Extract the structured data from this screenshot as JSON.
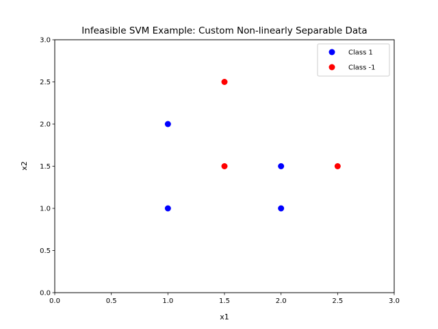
{
  "chart_data": {
    "type": "scatter",
    "title": "Infeasible SVM Example: Custom Non-linearly Separable Data",
    "xlabel": "x1",
    "ylabel": "x2",
    "xlim": [
      0,
      3
    ],
    "ylim": [
      0,
      3
    ],
    "xticks": [
      0.0,
      0.5,
      1.0,
      1.5,
      2.0,
      2.5,
      3.0
    ],
    "yticks": [
      0.0,
      0.5,
      1.0,
      1.5,
      2.0,
      2.5,
      3.0
    ],
    "xtick_labels": [
      "0.0",
      "0.5",
      "1.0",
      "1.5",
      "2.0",
      "2.5",
      "3.0"
    ],
    "ytick_labels": [
      "0.0",
      "0.5",
      "1.0",
      "1.5",
      "2.0",
      "2.5",
      "3.0"
    ],
    "grid": false,
    "legend_position": "top-right",
    "series": [
      {
        "name": "Class 1",
        "color": "#0000ff",
        "points": [
          {
            "x": 1.0,
            "y": 1.0
          },
          {
            "x": 2.0,
            "y": 1.0
          },
          {
            "x": 2.0,
            "y": 1.5
          },
          {
            "x": 1.0,
            "y": 2.0
          }
        ]
      },
      {
        "name": "Class -1",
        "color": "#ff0000",
        "points": [
          {
            "x": 1.5,
            "y": 1.5
          },
          {
            "x": 2.5,
            "y": 1.5
          },
          {
            "x": 1.5,
            "y": 2.5
          }
        ]
      }
    ]
  }
}
